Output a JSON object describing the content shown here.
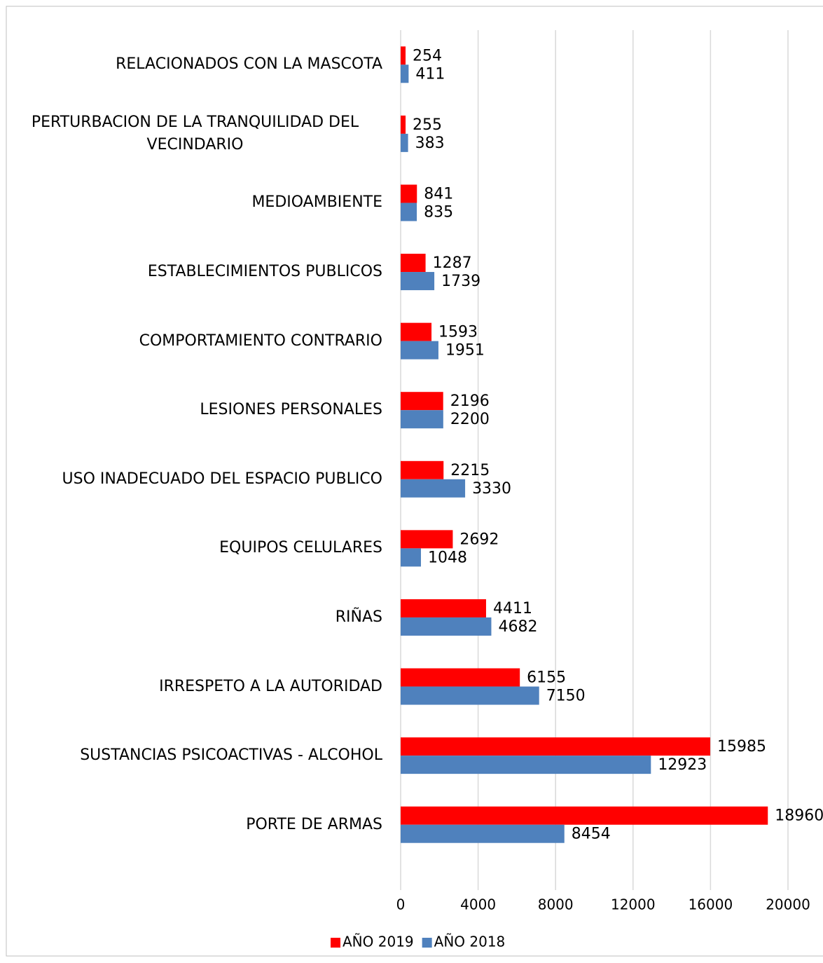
{
  "chart_data": {
    "type": "hbar",
    "categories": [
      "RELACIONADOS CON LA MASCOTA",
      "PERTURBACION DE LA TRANQUILIDAD DEL VECINDARIO",
      "MEDIOAMBIENTE",
      "ESTABLECIMIENTOS PUBLICOS",
      "COMPORTAMIENTO CONTRARIO",
      "LESIONES PERSONALES",
      "USO INADECUADO DEL ESPACIO PUBLICO",
      "EQUIPOS CELULARES",
      "RIÑAS",
      "IRRESPETO A LA AUTORIDAD",
      "SUSTANCIAS PSICOACTIVAS - ALCOHOL",
      "PORTE DE ARMAS"
    ],
    "series": [
      {
        "name": "AÑO 2019",
        "color": "#ff0000",
        "values": [
          254,
          255,
          841,
          1287,
          1593,
          2196,
          2215,
          2692,
          4411,
          6155,
          15985,
          18960
        ]
      },
      {
        "name": "AÑO 2018",
        "color": "#4f81bd",
        "values": [
          411,
          383,
          835,
          1739,
          1951,
          2200,
          3330,
          1048,
          4682,
          7150,
          12923,
          8454
        ]
      }
    ],
    "xlim": [
      0,
      20000
    ],
    "xticks": [
      0,
      4000,
      8000,
      12000,
      16000,
      20000
    ],
    "grid": true,
    "legend": "bottom"
  }
}
